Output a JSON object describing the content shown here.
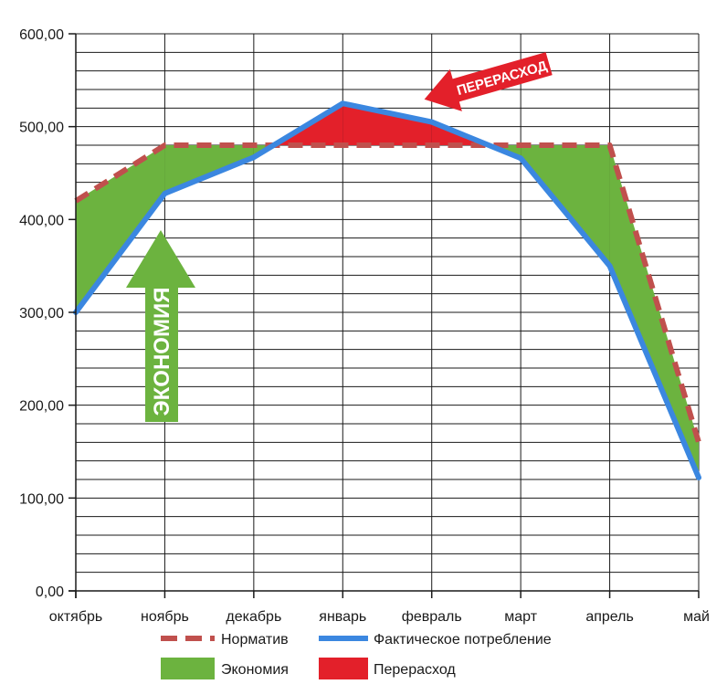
{
  "chart_data": {
    "type": "area",
    "categories": [
      "октябрь",
      "ноябрь",
      "декабрь",
      "январь",
      "февраль",
      "март",
      "апрель",
      "май"
    ],
    "ylim": [
      0,
      600
    ],
    "y_ticks": [
      "0,00",
      "100,00",
      "200,00",
      "300,00",
      "400,00",
      "500,00",
      "600,00"
    ],
    "grid": true,
    "legend_position": "bottom",
    "series": [
      {
        "name": "Норматив",
        "style": "dashed-line",
        "color": "#c0504d",
        "values": [
          420,
          480,
          480,
          480,
          480,
          480,
          480,
          160
        ]
      },
      {
        "name": "Фактическое потребление",
        "style": "line",
        "color": "#3b87e0",
        "values": [
          300,
          428,
          467,
          525,
          505,
          466,
          350,
          122
        ]
      }
    ],
    "fills": [
      {
        "name": "Экономия",
        "color": "#6cb33f"
      },
      {
        "name": "Перерасход",
        "color": "#e3202a"
      }
    ],
    "annotations": [
      {
        "text": "ЭКОНОМИЯ",
        "color": "#6cb33f",
        "direction": "up"
      },
      {
        "text": "ПЕРЕРАСХОД",
        "color": "#e3202a",
        "direction": "left"
      }
    ]
  }
}
